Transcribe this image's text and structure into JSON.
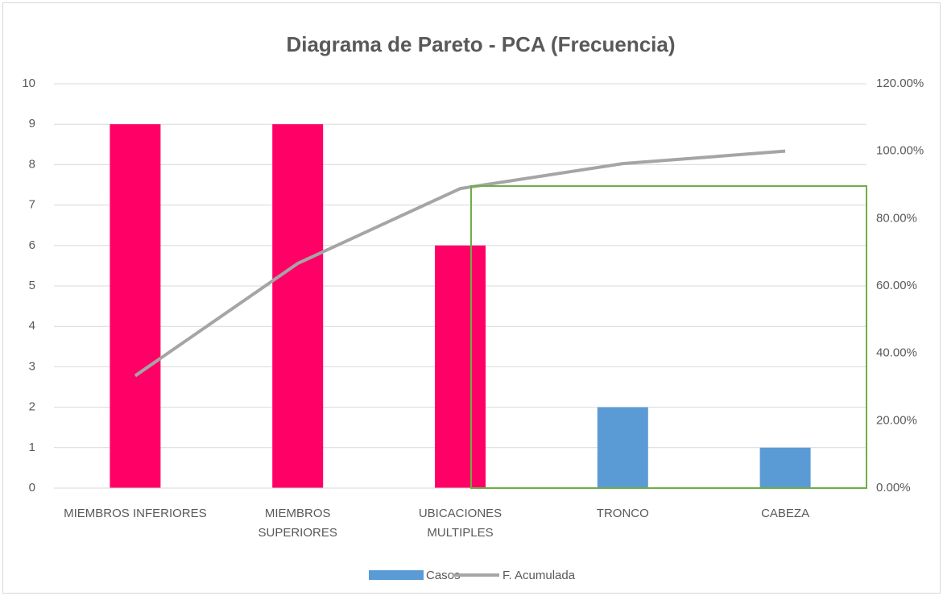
{
  "chart_data": {
    "type": "pareto",
    "title": "Diagrama de Pareto - PCA (Frecuencia)",
    "categories": [
      "MIEMBROS INFERIORES",
      "MIEMBROS SUPERIORES",
      "UBICACIONES MULTIPLES",
      "TRONCO",
      "CABEZA"
    ],
    "series": [
      {
        "name": "Casos",
        "type": "bar",
        "color": "#5B9BD5",
        "colors": [
          "#FF0066",
          "#FF0066",
          "#FF0066",
          "#5B9BD5",
          "#5B9BD5"
        ],
        "values": [
          9,
          9,
          6,
          2,
          1
        ]
      },
      {
        "name": "F. Acumulada",
        "type": "line",
        "axis": "y2",
        "color": "#A5A5A5",
        "values": [
          33.33,
          66.67,
          88.89,
          96.3,
          100
        ]
      }
    ],
    "ylim": [
      0,
      10
    ],
    "yticks": [
      0,
      1,
      2,
      3,
      4,
      5,
      6,
      7,
      8,
      9,
      10
    ],
    "y2lim": [
      0,
      120
    ],
    "y2ticks": [
      {
        "value": 0,
        "label": "0.00%"
      },
      {
        "value": 20,
        "label": "20.00%"
      },
      {
        "value": 40,
        "label": "40.00%"
      },
      {
        "value": 60,
        "label": "60.00%"
      },
      {
        "value": 80,
        "label": "80.00%"
      },
      {
        "value": 100,
        "label": "100.00%"
      },
      {
        "value": 120,
        "label": "120.00%"
      }
    ],
    "grid": true,
    "legend": "bottom"
  }
}
